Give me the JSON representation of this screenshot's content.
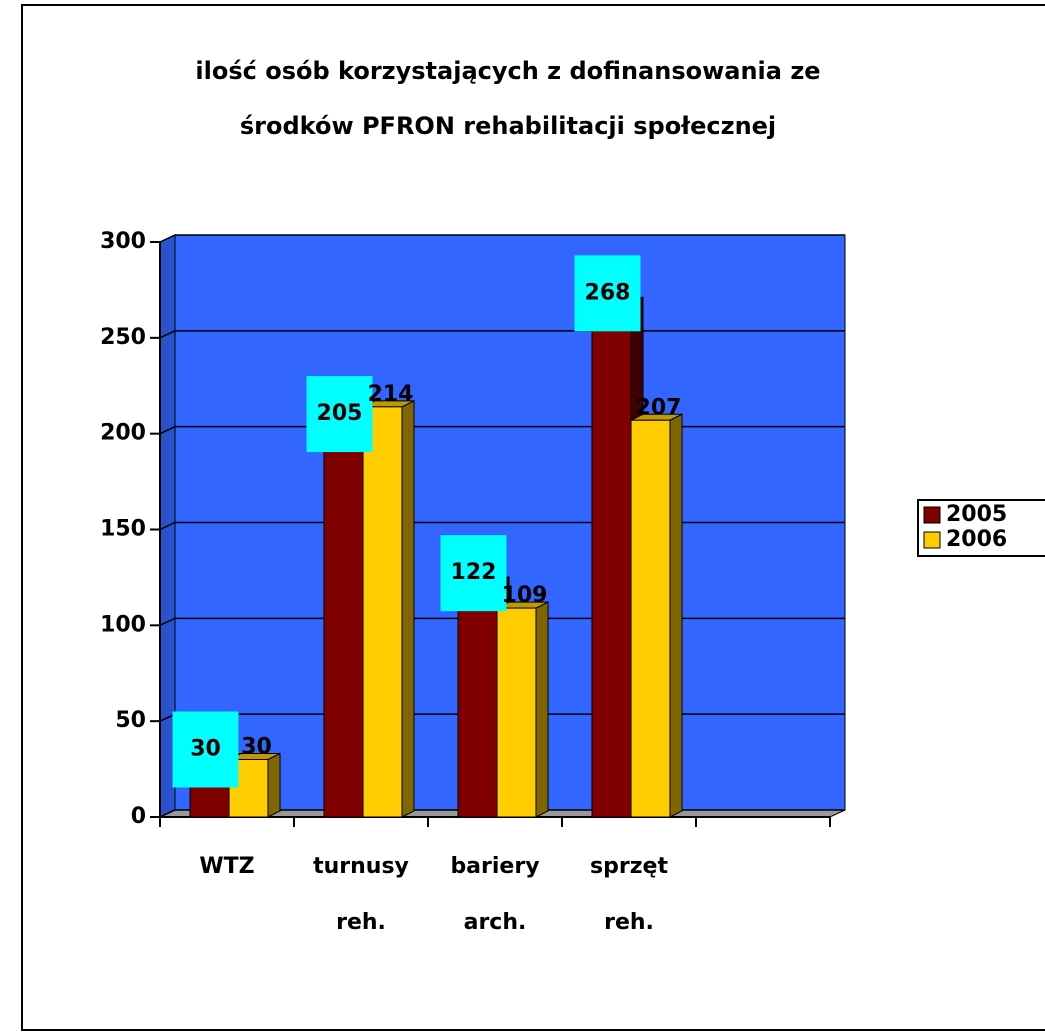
{
  "chart_data": {
    "type": "bar3d",
    "title": [
      "ilość osób korzystających z dofinansowania ze",
      "środków PFRON rehabilitacji społecznej"
    ],
    "categories": [
      [
        "WTZ"
      ],
      [
        "turnusy",
        "reh."
      ],
      [
        "bariery",
        "arch."
      ],
      [
        "sprzęt",
        "reh."
      ],
      null
    ],
    "series": [
      {
        "name": "2005",
        "color": "#800000",
        "values": [
          30,
          205,
          122,
          268,
          null
        ]
      },
      {
        "name": "2006",
        "color": "#ffcc00",
        "values": [
          30,
          214,
          109,
          207,
          null
        ]
      }
    ],
    "ylim": [
      0,
      300
    ],
    "yticks": [
      0,
      50,
      100,
      150,
      200,
      250,
      300
    ],
    "grid": true,
    "wall_color": "#3366ff",
    "label_box_color": "#00ffff",
    "legend": "right"
  }
}
